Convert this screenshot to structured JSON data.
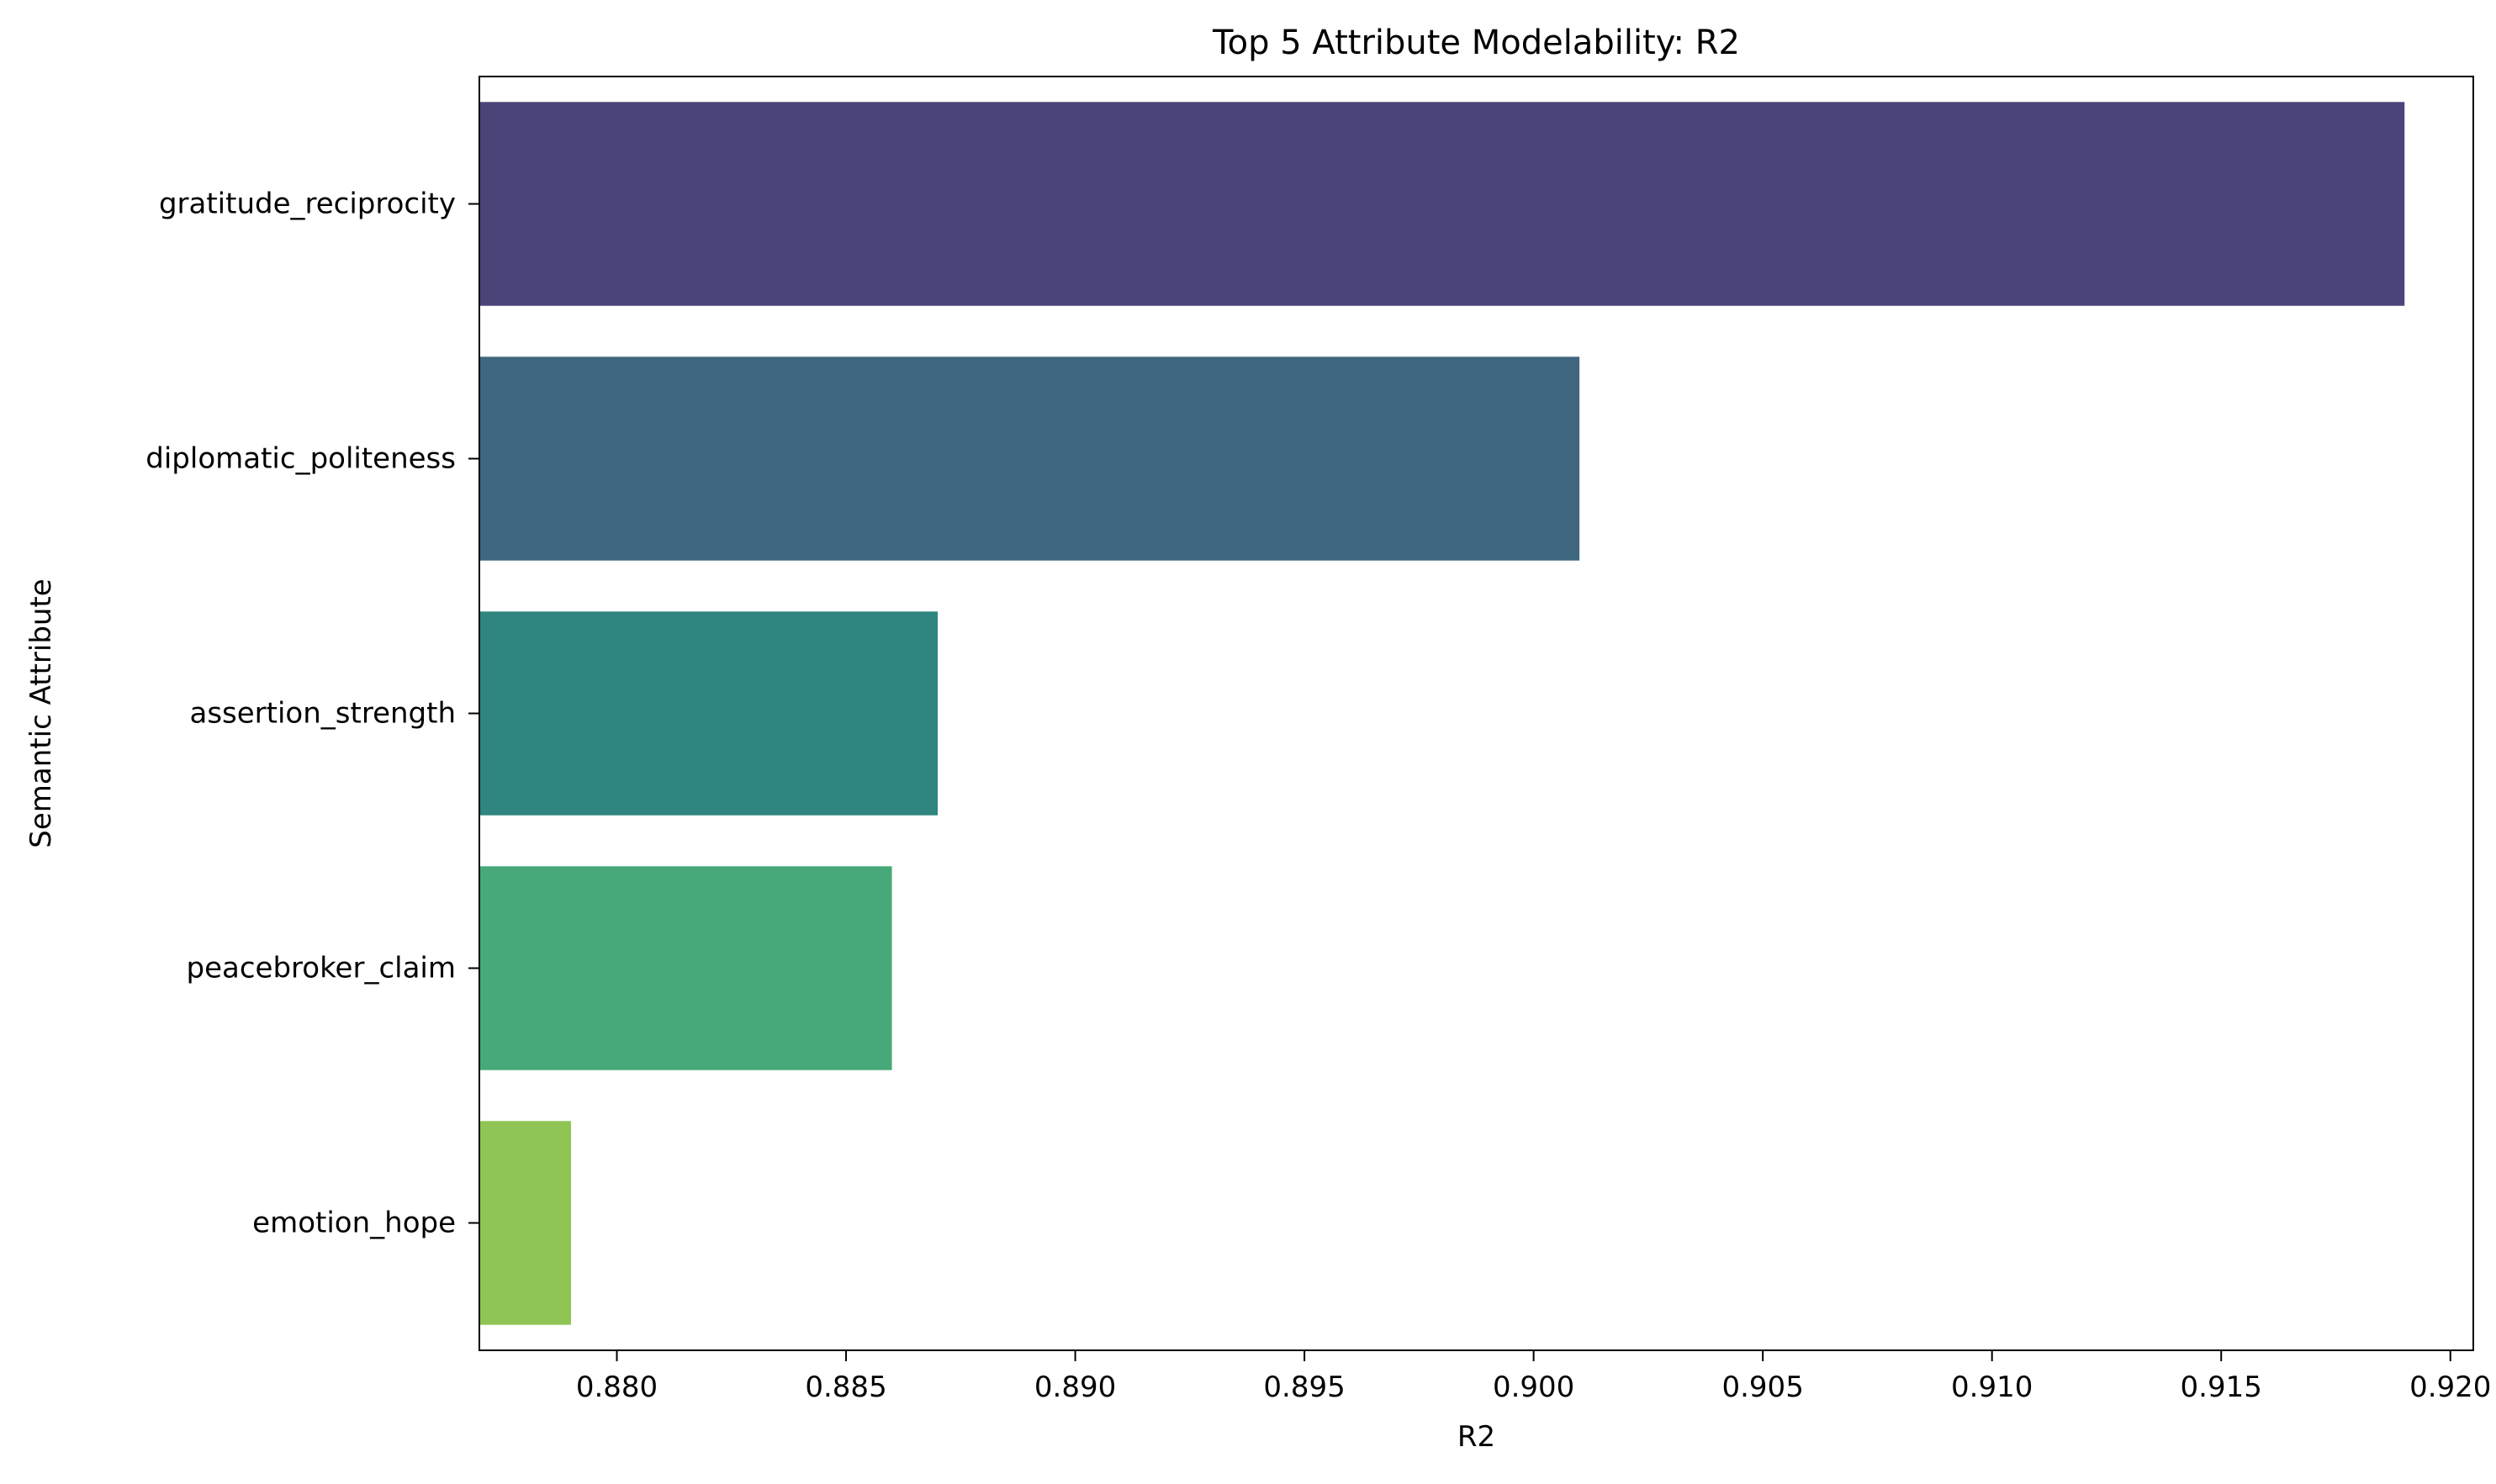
{
  "chart_data": {
    "type": "bar",
    "orientation": "horizontal",
    "title": "Top 5 Attribute Modelability: R2",
    "xlabel": "R2",
    "ylabel": "Semantic Attribute",
    "categories": [
      "gratitude_reciprocity",
      "diplomatic_politeness",
      "assertion_strength",
      "peacebroker_claim",
      "emotion_hope"
    ],
    "values": [
      0.919,
      0.901,
      0.887,
      0.886,
      0.879
    ],
    "colors": [
      "#4a4479",
      "#3f6780",
      "#2f8580",
      "#47a879",
      "#8fc555"
    ],
    "xlim": [
      0.877,
      0.9205
    ],
    "x_ticks": [
      "0.880",
      "0.885",
      "0.890",
      "0.895",
      "0.900",
      "0.905",
      "0.910",
      "0.915",
      "0.920"
    ],
    "x_tick_values": [
      0.88,
      0.885,
      0.89,
      0.895,
      0.9,
      0.905,
      0.91,
      0.915,
      0.92
    ],
    "grid": false,
    "legend": "none"
  }
}
